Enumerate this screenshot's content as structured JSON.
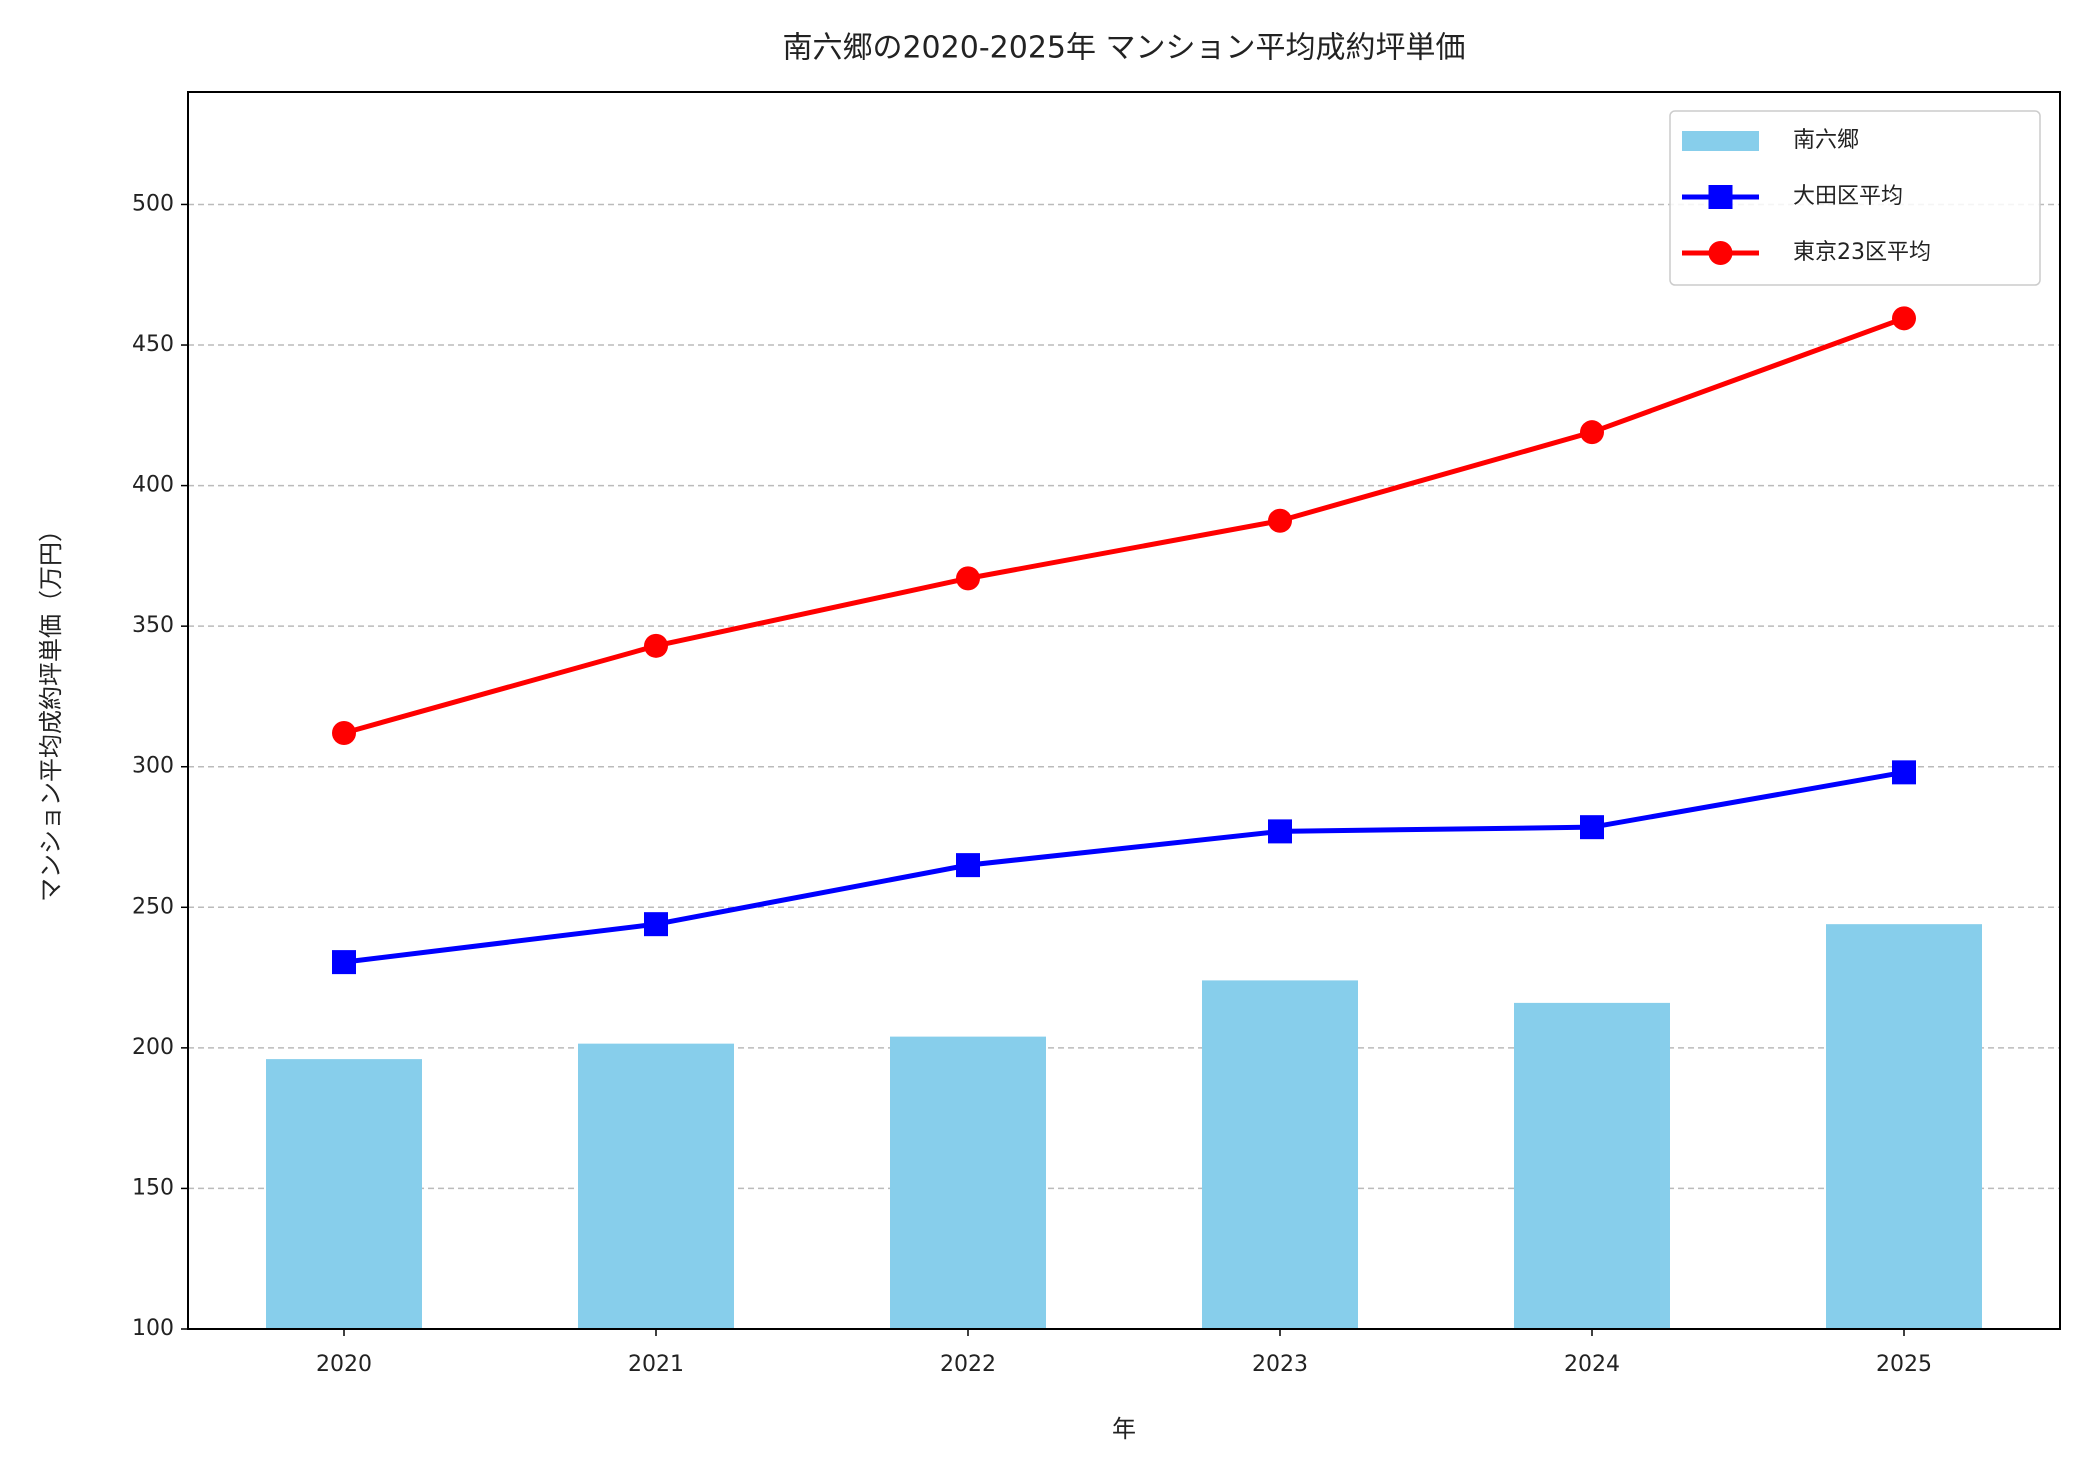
{
  "chart_data": {
    "type": "combo",
    "title": "南六郷の2020-2025年 マンション平均成約坪単価",
    "x_label": "年",
    "y_label": "マンション平均成約坪単価（万円）",
    "categories": [
      "2020",
      "2021",
      "2022",
      "2023",
      "2024",
      "2025"
    ],
    "series": [
      {
        "name": "南六郷",
        "type": "bar",
        "color": "#87ceeb",
        "values": [
          196,
          201.5,
          204,
          224,
          216,
          244
        ]
      },
      {
        "name": "大田区平均",
        "type": "line",
        "marker": "square",
        "color": "#0000ff",
        "values": [
          230.5,
          244,
          265,
          277,
          278.5,
          298
        ]
      },
      {
        "name": "東京23区平均",
        "type": "line",
        "marker": "circle",
        "color": "#ff0000",
        "values": [
          312,
          343,
          367,
          387.5,
          419,
          459.5
        ]
      }
    ],
    "ylim": [
      100,
      540
    ],
    "yticks": [
      100,
      150,
      200,
      250,
      300,
      350,
      400,
      450,
      500
    ],
    "grid": true,
    "legend": "upper right"
  }
}
